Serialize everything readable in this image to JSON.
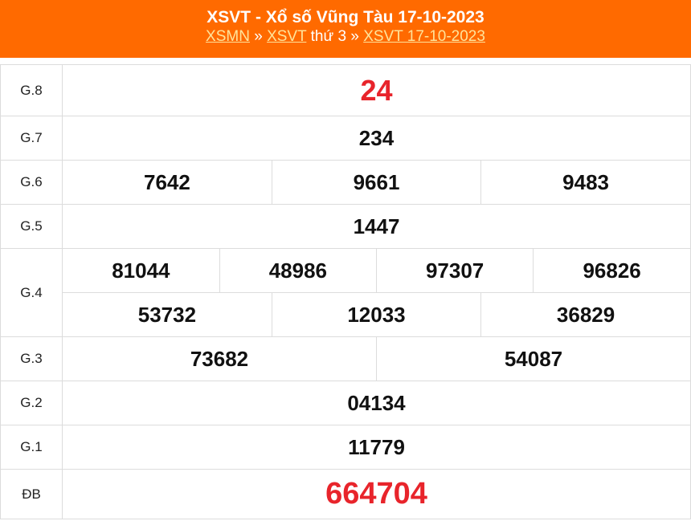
{
  "header": {
    "title": "XSVT - Xổ số Vũng Tàu 17-10-2023",
    "breadcrumb": {
      "link1": "XSMN",
      "sep1": " » ",
      "link2": "XSVT",
      "text2": " thứ 3",
      "sep2": " » ",
      "link3": "XSVT 17-10-2023"
    }
  },
  "results": {
    "g8": {
      "label": "G.8",
      "values": [
        "24"
      ]
    },
    "g7": {
      "label": "G.7",
      "values": [
        "234"
      ]
    },
    "g6": {
      "label": "G.6",
      "values": [
        "7642",
        "9661",
        "9483"
      ]
    },
    "g5": {
      "label": "G.5",
      "values": [
        "1447"
      ]
    },
    "g4": {
      "label": "G.4",
      "values": [
        "81044",
        "48986",
        "97307",
        "96826",
        "53732",
        "12033",
        "36829"
      ]
    },
    "g3": {
      "label": "G.3",
      "values": [
        "73682",
        "54087"
      ]
    },
    "g2": {
      "label": "G.2",
      "values": [
        "04134"
      ]
    },
    "g1": {
      "label": "G.1",
      "values": [
        "11779"
      ]
    },
    "db": {
      "label": "ĐB",
      "values": [
        "664704"
      ]
    }
  },
  "colors": {
    "header": "#ff6a00",
    "highlight": "#e8242b",
    "link": "#ffe39a"
  }
}
